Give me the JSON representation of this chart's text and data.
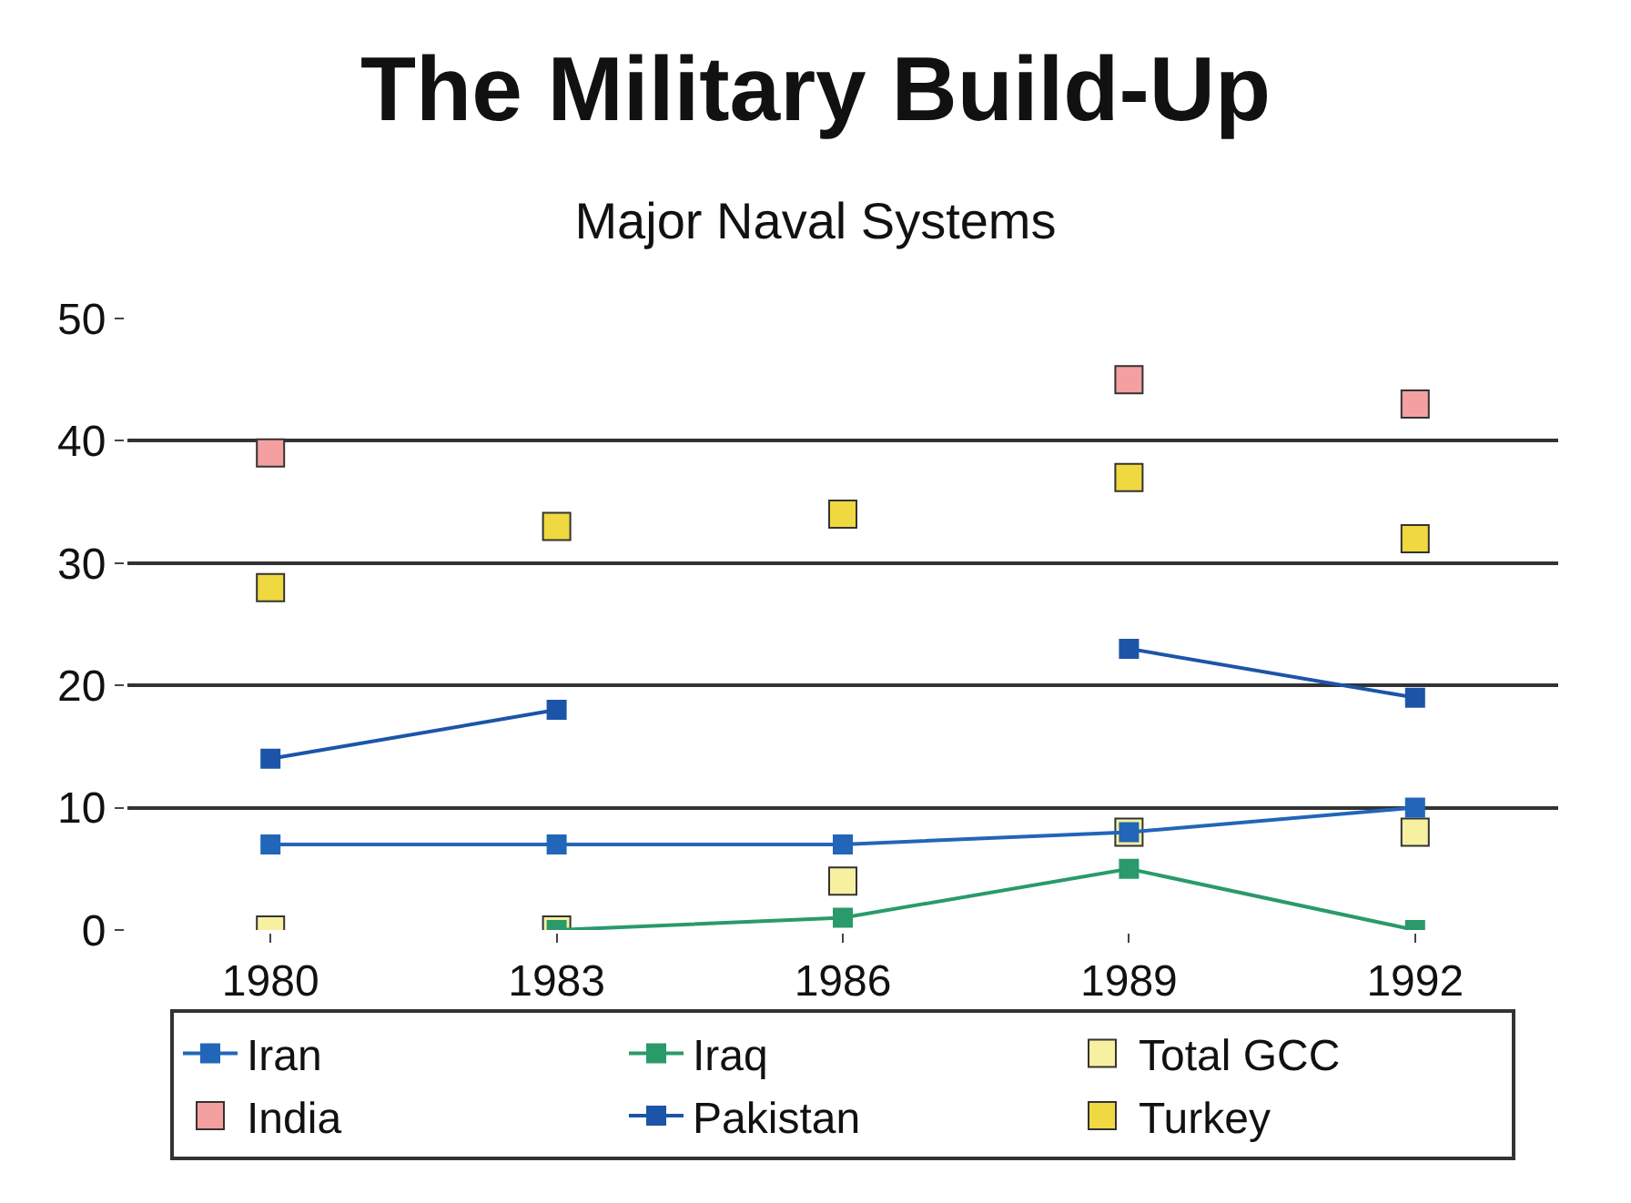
{
  "chart_data": {
    "type": "line",
    "title": "The Military Build-Up",
    "subtitle": "Major Naval Systems",
    "categories": [
      "1980",
      "1983",
      "1986",
      "1989",
      "1992"
    ],
    "series": [
      {
        "name": "Iran",
        "color": "#2166b8",
        "values": [
          7,
          7,
          7,
          8,
          10
        ]
      },
      {
        "name": "Iraq",
        "color": "#2a9a6a",
        "values": [
          null,
          0,
          1,
          5,
          0
        ]
      },
      {
        "name": "Total GCC",
        "color": "#f7f0a0",
        "type": "scatter",
        "values": [
          0,
          0,
          4,
          8,
          8
        ]
      },
      {
        "name": "India",
        "color": "#f4a0a0",
        "type": "scatter",
        "values": [
          39,
          null,
          null,
          45,
          43
        ]
      },
      {
        "name": "Pakistan",
        "color": "#1c55a8",
        "values": [
          14,
          18,
          null,
          23,
          19
        ]
      },
      {
        "name": "Turkey",
        "color": "#f0d840",
        "type": "scatter",
        "values": [
          28,
          33,
          34,
          37,
          32
        ]
      }
    ],
    "ylim": [
      0,
      50
    ],
    "yticks": [
      0,
      10,
      20,
      30,
      40,
      50
    ],
    "grid": "y",
    "legend": "bottom",
    "marker": "square",
    "line_style": "solid"
  }
}
